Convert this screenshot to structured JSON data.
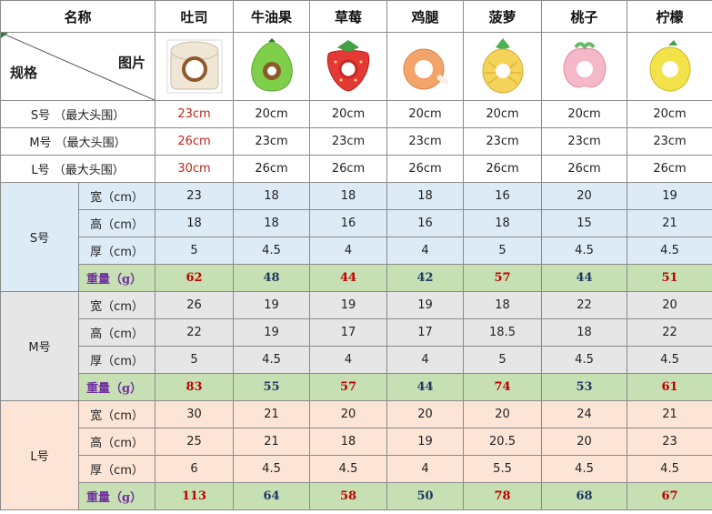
{
  "header": {
    "name_label": "名称",
    "spec_label": "规格",
    "image_label": "图片",
    "products": [
      "吐司",
      "牛油果",
      "草莓",
      "鸡腿",
      "菠萝",
      "桃子",
      "柠檬"
    ]
  },
  "images": [
    {
      "icon": "toast-pillow-icon",
      "color": "#efe6d6"
    },
    {
      "icon": "avocado-pillow-icon",
      "color": "#7fcf4a"
    },
    {
      "icon": "strawberry-pillow-icon",
      "color": "#e53935"
    },
    {
      "icon": "drumstick-pillow-icon",
      "color": "#f2a46a"
    },
    {
      "icon": "pineapple-pillow-icon",
      "color": "#f5d35a"
    },
    {
      "icon": "peach-pillow-icon",
      "color": "#f5b8c8"
    },
    {
      "icon": "lemon-pillow-icon",
      "color": "#f3e24a"
    }
  ],
  "sizes": [
    {
      "label": "S号  （最大头围）",
      "values": [
        "23cm",
        "20cm",
        "20cm",
        "20cm",
        "20cm",
        "20cm",
        "20cm"
      ]
    },
    {
      "label": "M号  （最大头围）",
      "values": [
        "26cm",
        "23cm",
        "23cm",
        "23cm",
        "23cm",
        "23cm",
        "23cm"
      ]
    },
    {
      "label": "L号  （最大头围）",
      "values": [
        "30cm",
        "26cm",
        "26cm",
        "26cm",
        "26cm",
        "26cm",
        "26cm"
      ]
    }
  ],
  "groups": [
    {
      "name": "S号",
      "rows": [
        {
          "label": "宽（cm）",
          "values": [
            "23",
            "18",
            "18",
            "18",
            "16",
            "20",
            "19"
          ]
        },
        {
          "label": "高（cm）",
          "values": [
            "18",
            "18",
            "16",
            "16",
            "18",
            "15",
            "21"
          ]
        },
        {
          "label": "厚（cm）",
          "values": [
            "5",
            "4.5",
            "4",
            "4",
            "5",
            "4.5",
            "4.5"
          ]
        }
      ],
      "weight_label": "重量（g）",
      "weights": [
        "62",
        "48",
        "44",
        "42",
        "57",
        "44",
        "51"
      ]
    },
    {
      "name": "M号",
      "rows": [
        {
          "label": "宽（cm）",
          "values": [
            "26",
            "19",
            "19",
            "19",
            "18",
            "22",
            "20"
          ]
        },
        {
          "label": "高（cm）",
          "values": [
            "22",
            "19",
            "17",
            "17",
            "18.5",
            "18",
            "22"
          ]
        },
        {
          "label": "厚（cm）",
          "values": [
            "5",
            "4.5",
            "4",
            "4",
            "5",
            "4.5",
            "4.5"
          ]
        }
      ],
      "weight_label": "重量（g）",
      "weights": [
        "83",
        "55",
        "57",
        "44",
        "74",
        "53",
        "61"
      ]
    },
    {
      "name": "L号",
      "rows": [
        {
          "label": "宽（cm）",
          "values": [
            "30",
            "21",
            "20",
            "20",
            "20",
            "24",
            "21"
          ]
        },
        {
          "label": "高（cm）",
          "values": [
            "25",
            "21",
            "18",
            "19",
            "20.5",
            "20",
            "23"
          ]
        },
        {
          "label": "厚（cm）",
          "values": [
            "6",
            "4.5",
            "4.5",
            "4",
            "5.5",
            "4.5",
            "4.5"
          ]
        }
      ],
      "weight_label": "重量（g）",
      "weights": [
        "113",
        "64",
        "58",
        "50",
        "78",
        "68",
        "67"
      ]
    }
  ],
  "colors": {
    "s_group_bg": "#ddebf7",
    "m_group_bg": "#e7e6e6",
    "l_group_bg": "#fce4d6",
    "weight_bg": "#c6e0b4",
    "highlight_red": "#c0261c",
    "weight_red": "#c00000",
    "weight_blue": "#1f3864",
    "weight_label": "#7030a0"
  }
}
